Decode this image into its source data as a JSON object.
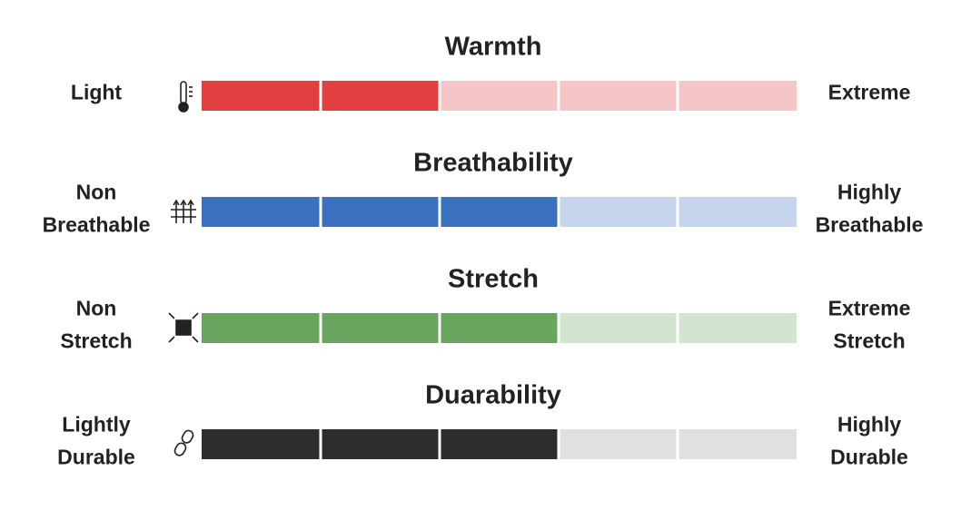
{
  "scales": [
    {
      "title": "Warmth",
      "left": [
        "Light"
      ],
      "right": [
        "Extreme"
      ],
      "value": 2,
      "segments": 5,
      "color": "#e24040",
      "track": "#f6c5c5"
    },
    {
      "title": "Breathability",
      "left": [
        "Non",
        "Breathable"
      ],
      "right": [
        "Highly",
        "Breathable"
      ],
      "value": 3,
      "segments": 5,
      "color": "#3b72c0",
      "track": "#c6d5ee"
    },
    {
      "title": "Stretch",
      "left": [
        "Non",
        "Stretch"
      ],
      "right": [
        "Extreme",
        "Stretch"
      ],
      "value": 3,
      "segments": 5,
      "color": "#69a55e",
      "track": "#d2e5cf"
    },
    {
      "title": "Duarability",
      "left": [
        "Lightly",
        "Durable"
      ],
      "right": [
        "Highly",
        "Durable"
      ],
      "value": 3,
      "segments": 5,
      "color": "#2d2d2d",
      "track": "#e0e0e0"
    }
  ]
}
